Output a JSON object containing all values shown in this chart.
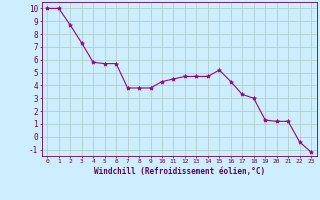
{
  "x": [
    0,
    1,
    2,
    3,
    4,
    5,
    6,
    7,
    8,
    9,
    10,
    11,
    12,
    13,
    14,
    15,
    16,
    17,
    18,
    19,
    20,
    21,
    22,
    23
  ],
  "y": [
    10,
    10,
    8.7,
    7.3,
    5.8,
    5.7,
    5.7,
    3.8,
    3.8,
    3.8,
    4.3,
    4.5,
    4.7,
    4.7,
    4.7,
    5.2,
    4.3,
    3.3,
    3.0,
    1.3,
    1.2,
    1.2,
    -0.4,
    -1.2
  ],
  "line_color": "#990099",
  "marker": "*",
  "marker_size": 3,
  "bg_color": "#cceeff",
  "grid_color": "#aaccbb",
  "xlabel": "Windchill (Refroidissement éolien,°C)",
  "xlabel_color": "#660066",
  "xlim": [
    -0.5,
    23.5
  ],
  "ylim": [
    -1.5,
    10.5
  ],
  "xtick_labels": [
    "0",
    "1",
    "2",
    "3",
    "4",
    "5",
    "6",
    "7",
    "8",
    "9",
    "10",
    "11",
    "12",
    "13",
    "14",
    "15",
    "16",
    "17",
    "18",
    "19",
    "20",
    "21",
    "22",
    "23"
  ],
  "ytick_labels": [
    "-1",
    "0",
    "1",
    "2",
    "3",
    "4",
    "5",
    "6",
    "7",
    "8",
    "9",
    "10"
  ],
  "ytick_values": [
    -1,
    0,
    1,
    2,
    3,
    4,
    5,
    6,
    7,
    8,
    9,
    10
  ],
  "tick_color": "#660066",
  "spine_color": "#660066"
}
